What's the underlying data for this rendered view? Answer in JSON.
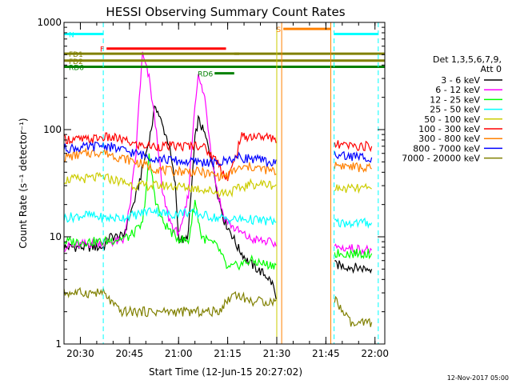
{
  "chart_data": {
    "type": "line",
    "title": "HESSI Observing Summary Count Rates",
    "xlabel": "Start Time (12-Jun-15 20:27:02)",
    "ylabel": "Count Rate (s⁻¹ detector⁻¹)",
    "yscale": "log",
    "ylim": [
      1,
      1000
    ],
    "xlim_minutes": [
      -2,
      96
    ],
    "xticks": [
      {
        "min": 3,
        "label": "20:30"
      },
      {
        "min": 18,
        "label": "20:45"
      },
      {
        "min": 33,
        "label": "21:00"
      },
      {
        "min": 48,
        "label": "21:15"
      },
      {
        "min": 63,
        "label": "21:30"
      },
      {
        "min": 78,
        "label": "21:45"
      },
      {
        "min": 93,
        "label": "22:00"
      }
    ],
    "yticks": [
      {
        "value": 1,
        "label": "1"
      },
      {
        "value": 10,
        "label": "10"
      },
      {
        "value": 100,
        "label": "100"
      },
      {
        "value": 1000,
        "label": "1000"
      }
    ],
    "legend_header": [
      "Det 1,3,5,6,7,9,",
      "Att 0"
    ],
    "legend_position": "right",
    "footer_date": "12-Nov-2017 05:00",
    "gaps_minutes": [
      [
        63,
        80.5
      ]
    ],
    "series": [
      {
        "name": "3 - 6 keV",
        "color": "#000000",
        "points": [
          [
            -2,
            8
          ],
          [
            10,
            8
          ],
          [
            12,
            10
          ],
          [
            16,
            10
          ],
          [
            20,
            24
          ],
          [
            24,
            80
          ],
          [
            26,
            170
          ],
          [
            28,
            110
          ],
          [
            30,
            75
          ],
          [
            32,
            30
          ],
          [
            33,
            10
          ],
          [
            35,
            9
          ],
          [
            36,
            11
          ],
          [
            38,
            80
          ],
          [
            39,
            125
          ],
          [
            41,
            90
          ],
          [
            43,
            55
          ],
          [
            45,
            25
          ],
          [
            47,
            14
          ],
          [
            49,
            11
          ],
          [
            51,
            8
          ],
          [
            54,
            6
          ],
          [
            57,
            5
          ],
          [
            60,
            4.3
          ],
          [
            62,
            3.5
          ],
          [
            62.8,
            2.5
          ],
          [
            81,
            5.5
          ],
          [
            86,
            5.2
          ],
          [
            92,
            5
          ]
        ]
      },
      {
        "name": "6 - 12 keV",
        "color": "#ff00ff",
        "points": [
          [
            -2,
            8
          ],
          [
            10,
            9
          ],
          [
            16,
            9
          ],
          [
            18,
            18
          ],
          [
            20,
            60
          ],
          [
            21,
            200
          ],
          [
            22,
            500
          ],
          [
            24,
            300
          ],
          [
            25.5,
            140
          ],
          [
            27,
            60
          ],
          [
            28,
            26
          ],
          [
            30,
            15
          ],
          [
            32,
            11
          ],
          [
            34,
            12
          ],
          [
            36,
            25
          ],
          [
            38,
            180
          ],
          [
            39,
            310
          ],
          [
            41,
            200
          ],
          [
            43,
            60
          ],
          [
            45,
            25
          ],
          [
            47,
            15
          ],
          [
            50,
            12
          ],
          [
            55,
            9.5
          ],
          [
            60,
            9
          ],
          [
            62.8,
            8.5
          ],
          [
            81,
            8
          ],
          [
            92,
            7.5
          ]
        ]
      },
      {
        "name": "12 - 25 keV",
        "color": "#00ff00",
        "points": [
          [
            -2,
            9
          ],
          [
            10,
            9
          ],
          [
            18,
            10
          ],
          [
            22,
            13
          ],
          [
            24,
            55
          ],
          [
            26,
            22
          ],
          [
            28,
            14
          ],
          [
            32,
            10
          ],
          [
            36,
            9
          ],
          [
            38,
            22
          ],
          [
            40,
            10
          ],
          [
            45,
            8
          ],
          [
            48,
            5
          ],
          [
            55,
            6
          ],
          [
            60,
            5.5
          ],
          [
            62.8,
            5.5
          ],
          [
            81,
            7
          ],
          [
            92,
            7
          ]
        ]
      },
      {
        "name": "25 - 50 keV",
        "color": "#00ffff",
        "points": [
          [
            -2,
            15
          ],
          [
            5,
            16
          ],
          [
            10,
            15
          ],
          [
            15,
            15
          ],
          [
            20,
            16
          ],
          [
            25,
            18
          ],
          [
            30,
            16
          ],
          [
            35,
            17
          ],
          [
            40,
            16
          ],
          [
            45,
            15
          ],
          [
            50,
            14.5
          ],
          [
            55,
            14.5
          ],
          [
            60,
            14
          ],
          [
            62.8,
            14
          ],
          [
            81,
            13.5
          ],
          [
            92,
            13.5
          ]
        ]
      },
      {
        "name": "50 - 100 keV",
        "color": "#cccc00",
        "points": [
          [
            -2,
            34
          ],
          [
            5,
            35
          ],
          [
            10,
            36
          ],
          [
            15,
            33
          ],
          [
            20,
            30
          ],
          [
            25,
            30
          ],
          [
            30,
            30
          ],
          [
            35,
            29
          ],
          [
            40,
            28
          ],
          [
            45,
            26
          ],
          [
            48,
            26
          ],
          [
            50,
            27
          ],
          [
            55,
            31
          ],
          [
            60,
            31
          ],
          [
            62.8,
            30
          ],
          [
            81,
            28
          ],
          [
            88,
            28
          ],
          [
            92,
            28
          ]
        ]
      },
      {
        "name": "100 - 300 keV",
        "color": "#ff0000",
        "points": [
          [
            -2,
            82
          ],
          [
            5,
            80
          ],
          [
            10,
            85
          ],
          [
            15,
            82
          ],
          [
            20,
            72
          ],
          [
            25,
            70
          ],
          [
            30,
            70
          ],
          [
            35,
            70
          ],
          [
            40,
            72
          ],
          [
            45,
            50
          ],
          [
            48,
            34
          ],
          [
            50,
            50
          ],
          [
            52,
            85
          ],
          [
            55,
            87
          ],
          [
            60,
            85
          ],
          [
            62.8,
            82
          ],
          [
            81,
            72
          ],
          [
            86,
            70
          ],
          [
            92,
            70
          ]
        ]
      },
      {
        "name": "300 - 800 keV",
        "color": "#ff8000",
        "points": [
          [
            -2,
            55
          ],
          [
            5,
            60
          ],
          [
            10,
            62
          ],
          [
            15,
            55
          ],
          [
            20,
            50
          ],
          [
            25,
            44
          ],
          [
            30,
            41
          ],
          [
            35,
            41
          ],
          [
            40,
            40
          ],
          [
            45,
            37
          ],
          [
            48,
            37
          ],
          [
            50,
            42
          ],
          [
            55,
            45
          ],
          [
            60,
            42
          ],
          [
            62.8,
            40
          ],
          [
            81,
            47
          ],
          [
            86,
            45
          ],
          [
            92,
            43
          ]
        ]
      },
      {
        "name": "800 - 7000 keV",
        "color": "#0000ff",
        "points": [
          [
            -2,
            67
          ],
          [
            5,
            68
          ],
          [
            10,
            72
          ],
          [
            15,
            65
          ],
          [
            20,
            60
          ],
          [
            25,
            55
          ],
          [
            30,
            52
          ],
          [
            35,
            50
          ],
          [
            40,
            50
          ],
          [
            45,
            48
          ],
          [
            50,
            55
          ],
          [
            55,
            54
          ],
          [
            60,
            50
          ],
          [
            62.8,
            48
          ],
          [
            81,
            58
          ],
          [
            86,
            56
          ],
          [
            92,
            55
          ]
        ]
      },
      {
        "name": "7000 - 20000 keV",
        "color": "#808000",
        "points": [
          [
            -2,
            3
          ],
          [
            5,
            3
          ],
          [
            10,
            3
          ],
          [
            15,
            2
          ],
          [
            20,
            2
          ],
          [
            25,
            2
          ],
          [
            30,
            2
          ],
          [
            35,
            2
          ],
          [
            40,
            2
          ],
          [
            45,
            2
          ],
          [
            50,
            3
          ],
          [
            55,
            2.5
          ],
          [
            60,
            2.5
          ],
          [
            62.8,
            2.5
          ],
          [
            81,
            2.5
          ],
          [
            86,
            1.5
          ],
          [
            92,
            1.6
          ]
        ]
      }
    ],
    "bars": [
      {
        "label": "N",
        "color": "#00ffff",
        "start": -2,
        "end": 10,
        "value": 780
      },
      {
        "label": "",
        "color": "#00ffff",
        "start": 80.5,
        "end": 94,
        "value": 780
      },
      {
        "label": "S",
        "color": "#ff8000",
        "start": 65,
        "end": 79.5,
        "value": 870
      },
      {
        "label": "F",
        "color": "#ff0000",
        "start": 11,
        "end": 47.5,
        "value": 570
      },
      {
        "label": "FD1",
        "color": "#808000",
        "start": -2,
        "end": 96,
        "value": 510
      },
      {
        "label": "",
        "color": "#808000",
        "start": 50,
        "end": 51.5,
        "value": 510
      },
      {
        "label": "FD2",
        "color": "#808000",
        "start": -2,
        "end": 96,
        "value": 440
      },
      {
        "label": "RD6",
        "color": "#008000",
        "start": -2,
        "end": 96,
        "value": 385
      },
      {
        "label": "RD6",
        "color": "#008000",
        "start": 44,
        "end": 50,
        "value": 335
      }
    ],
    "vlines": [
      {
        "min": -2,
        "color": "#00ffff",
        "style": "solid"
      },
      {
        "min": 10,
        "color": "#00ffff",
        "style": "dashed"
      },
      {
        "min": 63,
        "color": "#cccc00",
        "style": "solid"
      },
      {
        "min": 64.5,
        "color": "#ff8000",
        "style": "solid"
      },
      {
        "min": 79.5,
        "color": "#ff8000",
        "style": "solid"
      },
      {
        "min": 80.5,
        "color": "#00ffff",
        "style": "dashed"
      },
      {
        "min": 94,
        "color": "#00ffff",
        "style": "dashed"
      }
    ]
  }
}
